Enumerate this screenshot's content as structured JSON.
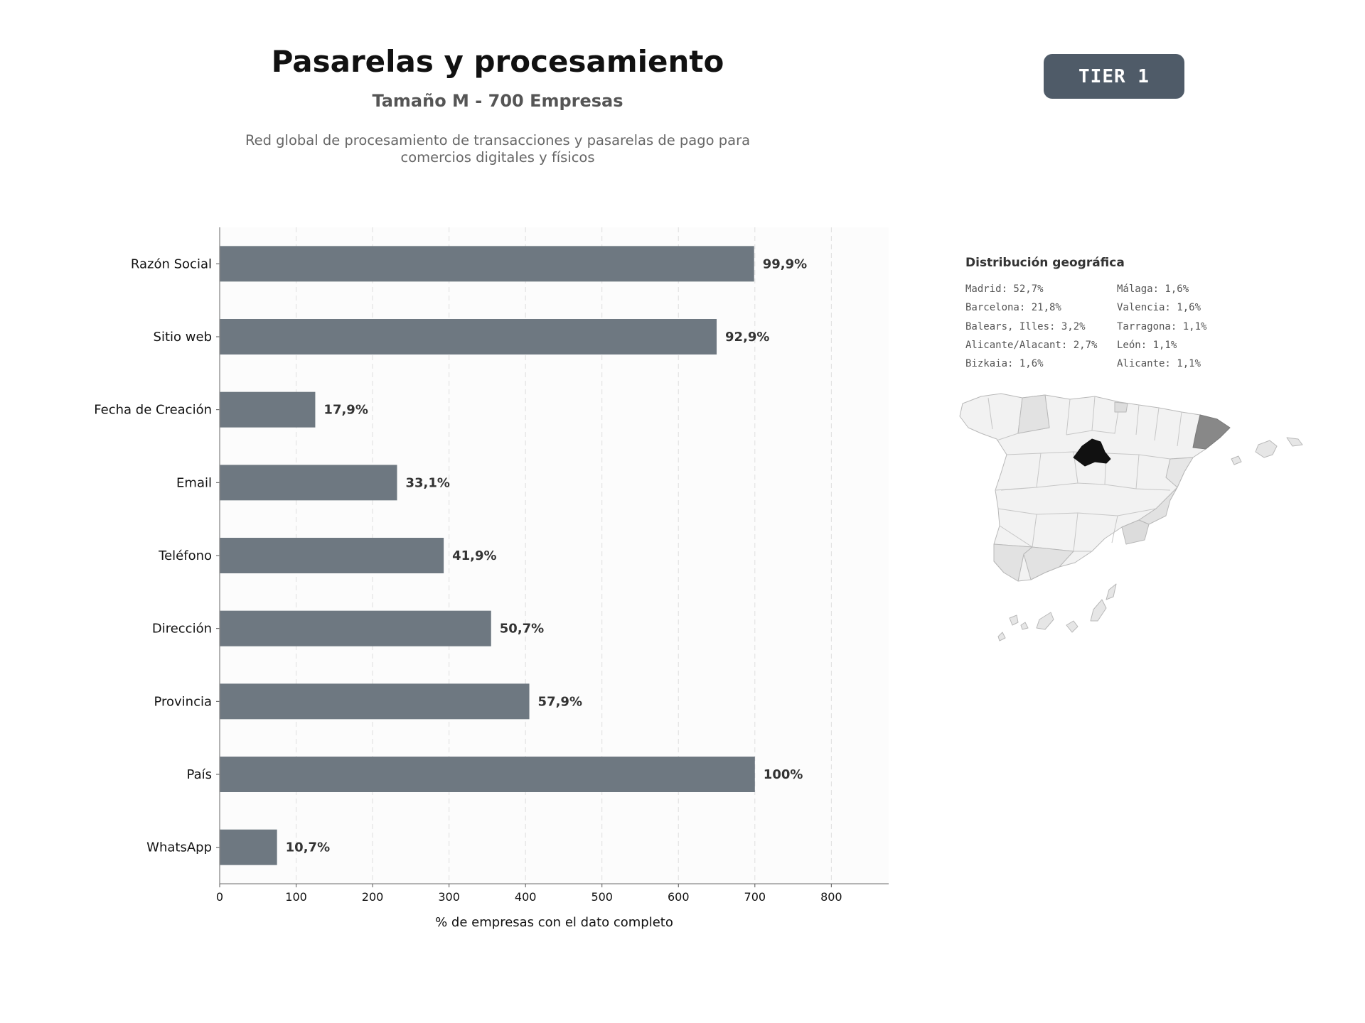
{
  "header": {
    "title": "Pasarelas y procesamiento",
    "subtitle": "Tamaño M - 700 Empresas",
    "description_line1": "Red global de procesamiento de transacciones y pasarelas de pago para",
    "description_line2": "comercios digitales y físicos",
    "tier_badge": "TIER 1"
  },
  "colors": {
    "bar": "#6e7881",
    "badge": "#4f5b68",
    "madrid": "#111111",
    "barcelona": "#888888",
    "region_light": "#f2f2f2",
    "region_mid": "#e2e2e2"
  },
  "chart_data": {
    "type": "bar",
    "orientation": "horizontal",
    "categories": [
      "Razón Social",
      "Sitio web",
      "Fecha de Creación",
      "Email",
      "Teléfono",
      "Dirección",
      "Provincia",
      "País",
      "WhatsApp"
    ],
    "values": [
      699,
      650,
      125,
      232,
      293,
      355,
      405,
      700,
      75
    ],
    "data_labels": [
      "99,9%",
      "92,9%",
      "17,9%",
      "33,1%",
      "41,9%",
      "50,7%",
      "57,9%",
      "100%",
      "10,7%"
    ],
    "xlabel": "% de empresas con el dato completo",
    "ylabel": "",
    "xlim": [
      0,
      875
    ],
    "xticks": [
      0,
      100,
      200,
      300,
      400,
      500,
      600,
      700,
      800
    ],
    "grid": "vertical dashed"
  },
  "geo": {
    "title": "Distribución geográfica",
    "items": [
      "Madrid: 52,7%",
      "Málaga: 1,6%",
      "Barcelona: 21,8%",
      "Valencia: 1,6%",
      "Balears, Illes: 3,2%",
      "Tarragona: 1,1%",
      "Alicante/Alacant: 2,7%",
      "León: 1,1%",
      "Bizkaia: 1,6%",
      "Alicante: 1,1%"
    ]
  }
}
